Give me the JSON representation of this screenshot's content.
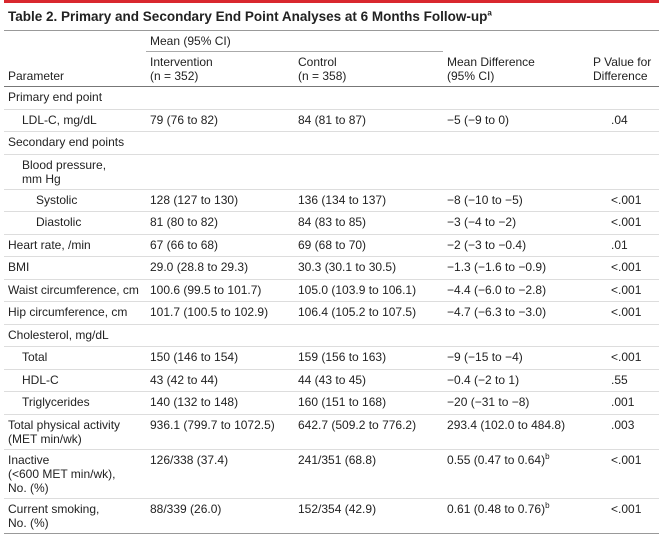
{
  "title": "Table 2. Primary and Secondary End Point Analyses at 6 Months Follow-up",
  "title_note": "a",
  "table": {
    "header": {
      "parameter": "Parameter",
      "mean_group": "Mean (95% CI)",
      "intervention": [
        "Intervention",
        "(n = 352)"
      ],
      "control": [
        "Control",
        "(n = 358)"
      ],
      "difference": [
        "Mean Difference",
        "(95% CI)"
      ],
      "p": [
        "P Value for",
        "Difference"
      ]
    },
    "rows": [
      {
        "level": 0,
        "cells": [
          "Primary end point"
        ]
      },
      {
        "level": 1,
        "cells": [
          "LDL-C, mg/dL",
          "79 (76 to 82)",
          "84 (81 to 87)",
          "−5 (−9 to 0)",
          ".04"
        ]
      },
      {
        "level": 0,
        "cells": [
          "Secondary end points"
        ]
      },
      {
        "level": 1,
        "cells": [
          [
            "Blood pressure,",
            "mm Hg"
          ]
        ]
      },
      {
        "level": 2,
        "cells": [
          "Systolic",
          "128 (127 to 130)",
          "136 (134 to 137)",
          "−8 (−10 to −5)",
          "<.001"
        ]
      },
      {
        "level": 2,
        "cells": [
          "Diastolic",
          "81 (80 to 82)",
          "84 (83 to 85)",
          "−3 (−4 to −2)",
          "<.001"
        ]
      },
      {
        "level": 0,
        "cells": [
          "Heart rate, /min",
          "67 (66 to 68)",
          "69 (68 to 70)",
          "−2 (−3 to −0.4)",
          ".01"
        ]
      },
      {
        "level": 0,
        "cells": [
          "BMI",
          "29.0 (28.8 to 29.3)",
          "30.3 (30.1 to 30.5)",
          "−1.3 (−1.6 to −0.9)",
          "<.001"
        ]
      },
      {
        "level": 0,
        "cells": [
          "Waist circumference, cm",
          "100.6 (99.5 to 101.7)",
          "105.0 (103.9 to 106.1)",
          "−4.4 (−6.0 to −2.8)",
          "<.001"
        ]
      },
      {
        "level": 0,
        "cells": [
          "Hip circumference, cm",
          "101.7 (100.5 to 102.9)",
          "106.4 (105.2 to 107.5)",
          "−4.7 (−6.3 to −3.0)",
          "<.001"
        ]
      },
      {
        "level": 0,
        "cells": [
          "Cholesterol, mg/dL"
        ]
      },
      {
        "level": 1,
        "cells": [
          "Total",
          "150 (146 to 154)",
          "159 (156 to 163)",
          "−9 (−15 to −4)",
          "<.001"
        ]
      },
      {
        "level": 1,
        "cells": [
          "HDL-C",
          "43 (42 to 44)",
          "44 (43 to 45)",
          "−0.4 (−2 to 1)",
          ".55"
        ]
      },
      {
        "level": 1,
        "cells": [
          "Triglycerides",
          "140 (132 to 148)",
          "160 (151 to 168)",
          "−20 (−31 to −8)",
          ".001"
        ]
      },
      {
        "level": 0,
        "cells": [
          [
            "Total physical activity",
            "(MET min/wk)"
          ],
          "936.1 (799.7 to 1072.5)",
          "642.7 (509.2 to 776.2)",
          "293.4 (102.0 to 484.8)",
          ".003"
        ]
      },
      {
        "level": 0,
        "cells": [
          [
            "Inactive",
            "(<600 MET min/wk),",
            "No. (%)"
          ],
          "126/338 (37.4)",
          "241/351 (68.8)",
          {
            "text": "0.55 (0.47 to 0.64)",
            "note": "b"
          },
          "<.001"
        ]
      },
      {
        "level": 0,
        "cells": [
          [
            "Current smoking,",
            "No. (%)"
          ],
          "88/339 (26.0)",
          "152/354 (42.9)",
          {
            "text": "0.61 (0.48 to 0.76)",
            "note": "b"
          },
          "<.001"
        ]
      }
    ]
  }
}
